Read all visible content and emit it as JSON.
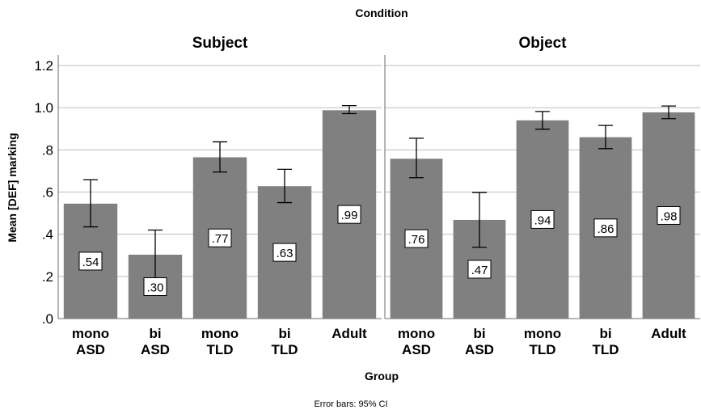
{
  "chart_data": {
    "type": "bar",
    "title": "Condition",
    "xlabel": "Group",
    "ylabel": "Mean [DEF] marking",
    "footnote": "Error bars: 95% CI",
    "ylim": [
      0,
      1.25
    ],
    "yticks": [
      ".0",
      ".2",
      ".4",
      ".6",
      ".8",
      "1.0",
      "1.2"
    ],
    "ytick_values": [
      0,
      0.2,
      0.4,
      0.6,
      0.8,
      1.0,
      1.2
    ],
    "grid": true,
    "bar_color": "#808080",
    "categories": [
      [
        "mono",
        "ASD"
      ],
      [
        "bi",
        "ASD"
      ],
      [
        "mono",
        "TLD"
      ],
      [
        "bi",
        "TLD"
      ],
      [
        "Adult"
      ]
    ],
    "panels": [
      {
        "name": "Subject",
        "values": [
          0.545,
          0.303,
          0.765,
          0.628,
          0.988
        ],
        "labels": [
          ".54",
          ".30",
          ".77",
          ".63",
          ".99"
        ],
        "ci_low": [
          0.435,
          0.19,
          0.695,
          0.55,
          0.972
        ],
        "ci_high": [
          0.658,
          0.42,
          0.838,
          0.708,
          1.01
        ]
      },
      {
        "name": "Object",
        "values": [
          0.758,
          0.468,
          0.94,
          0.86,
          0.978
        ],
        "labels": [
          ".76",
          ".47",
          ".94",
          ".86",
          ".98"
        ],
        "ci_low": [
          0.668,
          0.338,
          0.898,
          0.806,
          0.948
        ],
        "ci_high": [
          0.855,
          0.598,
          0.982,
          0.916,
          1.008
        ]
      }
    ]
  }
}
